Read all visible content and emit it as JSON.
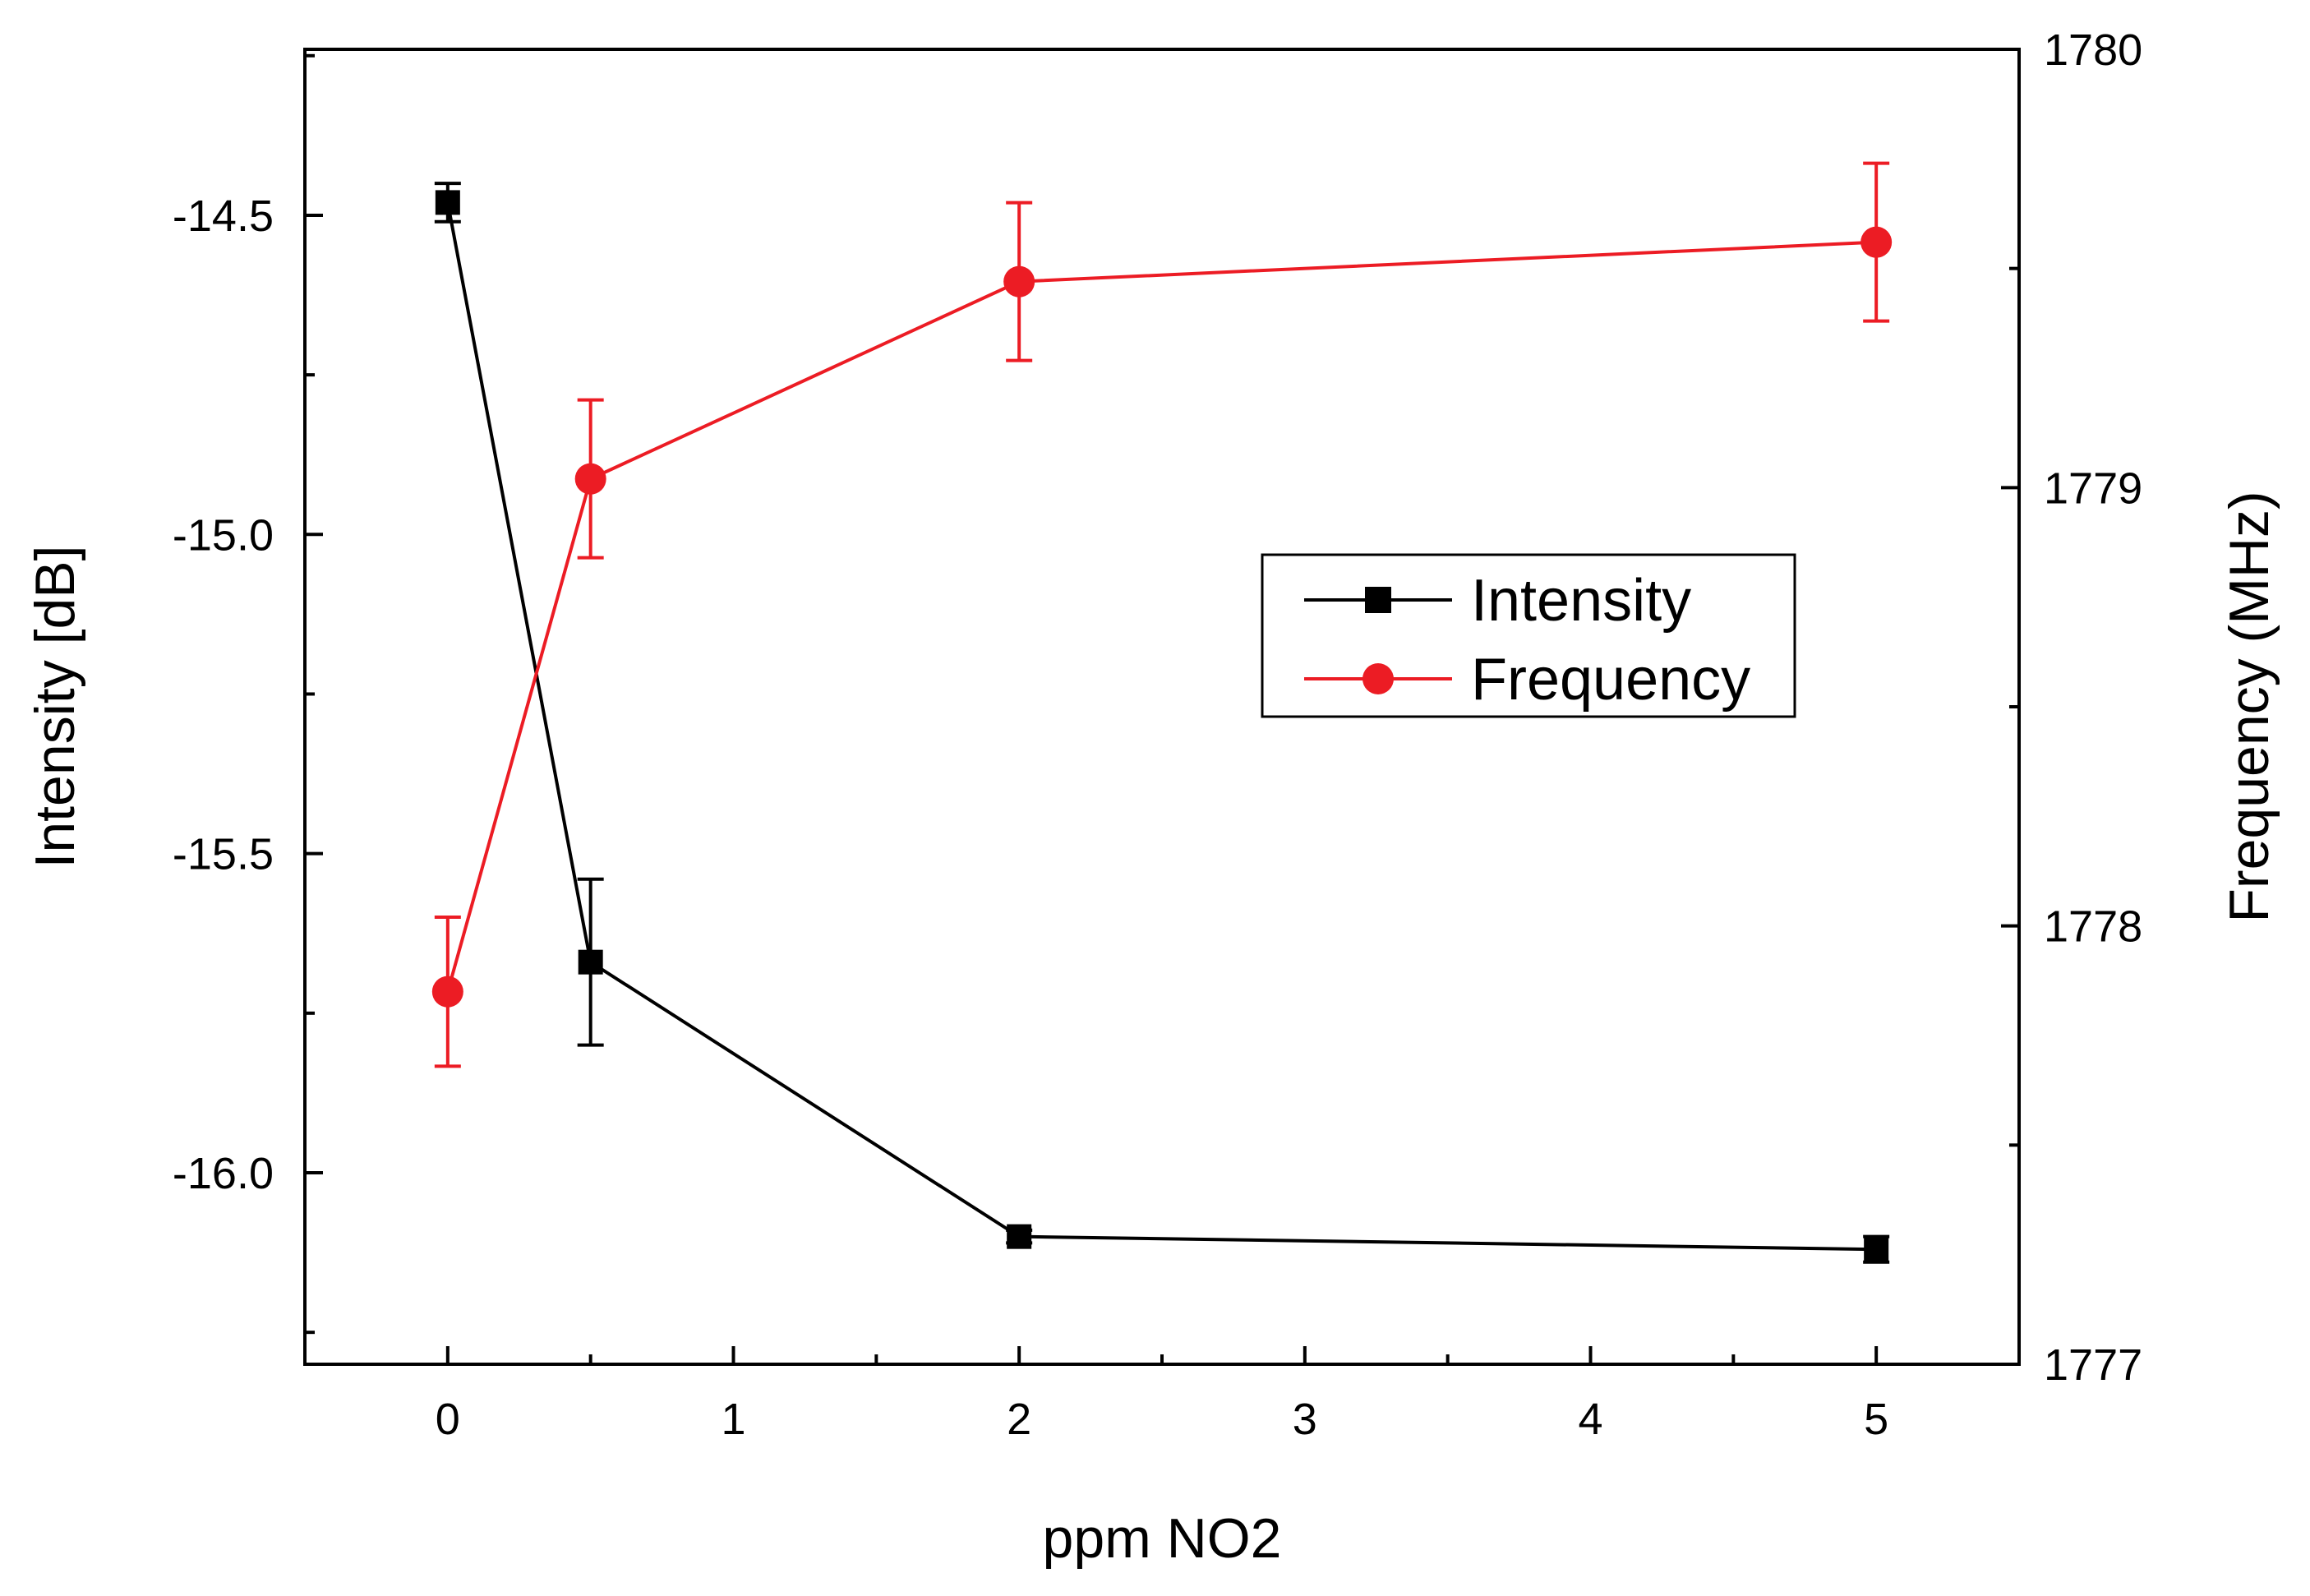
{
  "chart_data": {
    "type": "line",
    "title": "",
    "xlabel": "ppm NO2",
    "ylabel": "Intensity [dB]",
    "y2label": "Frequency (MHz)",
    "x_ticks": [
      {
        "pos": 0,
        "label": "0"
      },
      {
        "pos": 1,
        "label": "1"
      },
      {
        "pos": 2,
        "label": "2"
      },
      {
        "pos": 3,
        "label": "3"
      },
      {
        "pos": 4,
        "label": "4"
      },
      {
        "pos": 5,
        "label": "5"
      }
    ],
    "xlim": [
      -0.5,
      5.5
    ],
    "ylim": [
      -16.3,
      -14.24
    ],
    "y_ticks": [
      "-14.5",
      "-15.0",
      "-15.5",
      "-16.0"
    ],
    "y_tick_values": [
      -14.5,
      -15.0,
      -15.5,
      -16.0
    ],
    "y_minor_ticks": [
      -14.25,
      -14.75,
      -15.25,
      -15.75,
      -16.25
    ],
    "y2lim": [
      1777,
      1780
    ],
    "y2_ticks": [
      "1777",
      "1778",
      "1779",
      "1780"
    ],
    "y2_tick_values": [
      1777,
      1778,
      1779,
      1780
    ],
    "y2_minor_ticks": [
      1777.5,
      1778.5,
      1779.5
    ],
    "grid": false,
    "legend_position": "center-right",
    "series": [
      {
        "name": "Intensity",
        "axis": "left",
        "color": "#000000",
        "marker": "square",
        "x": [
          0,
          0.5,
          2,
          5
        ],
        "values": [
          -14.48,
          -15.67,
          -16.1,
          -16.12
        ],
        "errors": [
          0.03,
          0.13,
          0.01,
          0.02
        ]
      },
      {
        "name": "Frequency",
        "axis": "right",
        "color": "#ec1c24",
        "marker": "circle",
        "x": [
          0,
          0.5,
          2,
          5
        ],
        "values": [
          1777.85,
          1779.02,
          1779.47,
          1779.56
        ],
        "errors": [
          0.17,
          0.18,
          0.18,
          0.18
        ]
      }
    ]
  }
}
